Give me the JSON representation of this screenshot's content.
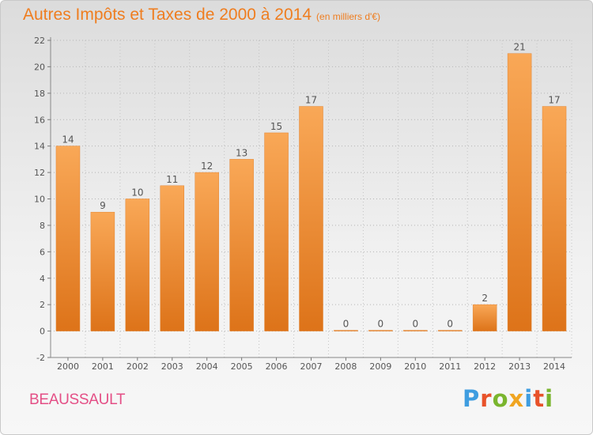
{
  "chart_data": {
    "type": "bar",
    "title": "Autres Impôts et Taxes de 2000 à 2014",
    "subtitle": "(en milliers d'€)",
    "xlabel": "",
    "ylabel": "",
    "categories": [
      "2000",
      "2001",
      "2002",
      "2003",
      "2004",
      "2005",
      "2006",
      "2007",
      "2008",
      "2009",
      "2010",
      "2011",
      "2012",
      "2013",
      "2014"
    ],
    "values": [
      14,
      9,
      10,
      11,
      12,
      13,
      15,
      17,
      0,
      0,
      0,
      0,
      2,
      21,
      17
    ],
    "ylim": [
      -2,
      22
    ],
    "yticks": [
      -2,
      0,
      2,
      4,
      6,
      8,
      10,
      12,
      14,
      16,
      18,
      20,
      22
    ],
    "grid": "horizontal-dotted",
    "bar_color": "#f08a2e"
  },
  "footer": {
    "place": "BEAUSSAULT",
    "brand_letters": [
      {
        "ch": "P",
        "color": "#3f9de0"
      },
      {
        "ch": "r",
        "color": "#e8522a"
      },
      {
        "ch": "o",
        "color": "#7ab52e"
      },
      {
        "ch": "x",
        "color": "#f0a521"
      },
      {
        "ch": "i",
        "color": "#3f9de0"
      },
      {
        "ch": "t",
        "color": "#e8522a"
      },
      {
        "ch": "i",
        "color": "#7ab52e"
      }
    ]
  }
}
